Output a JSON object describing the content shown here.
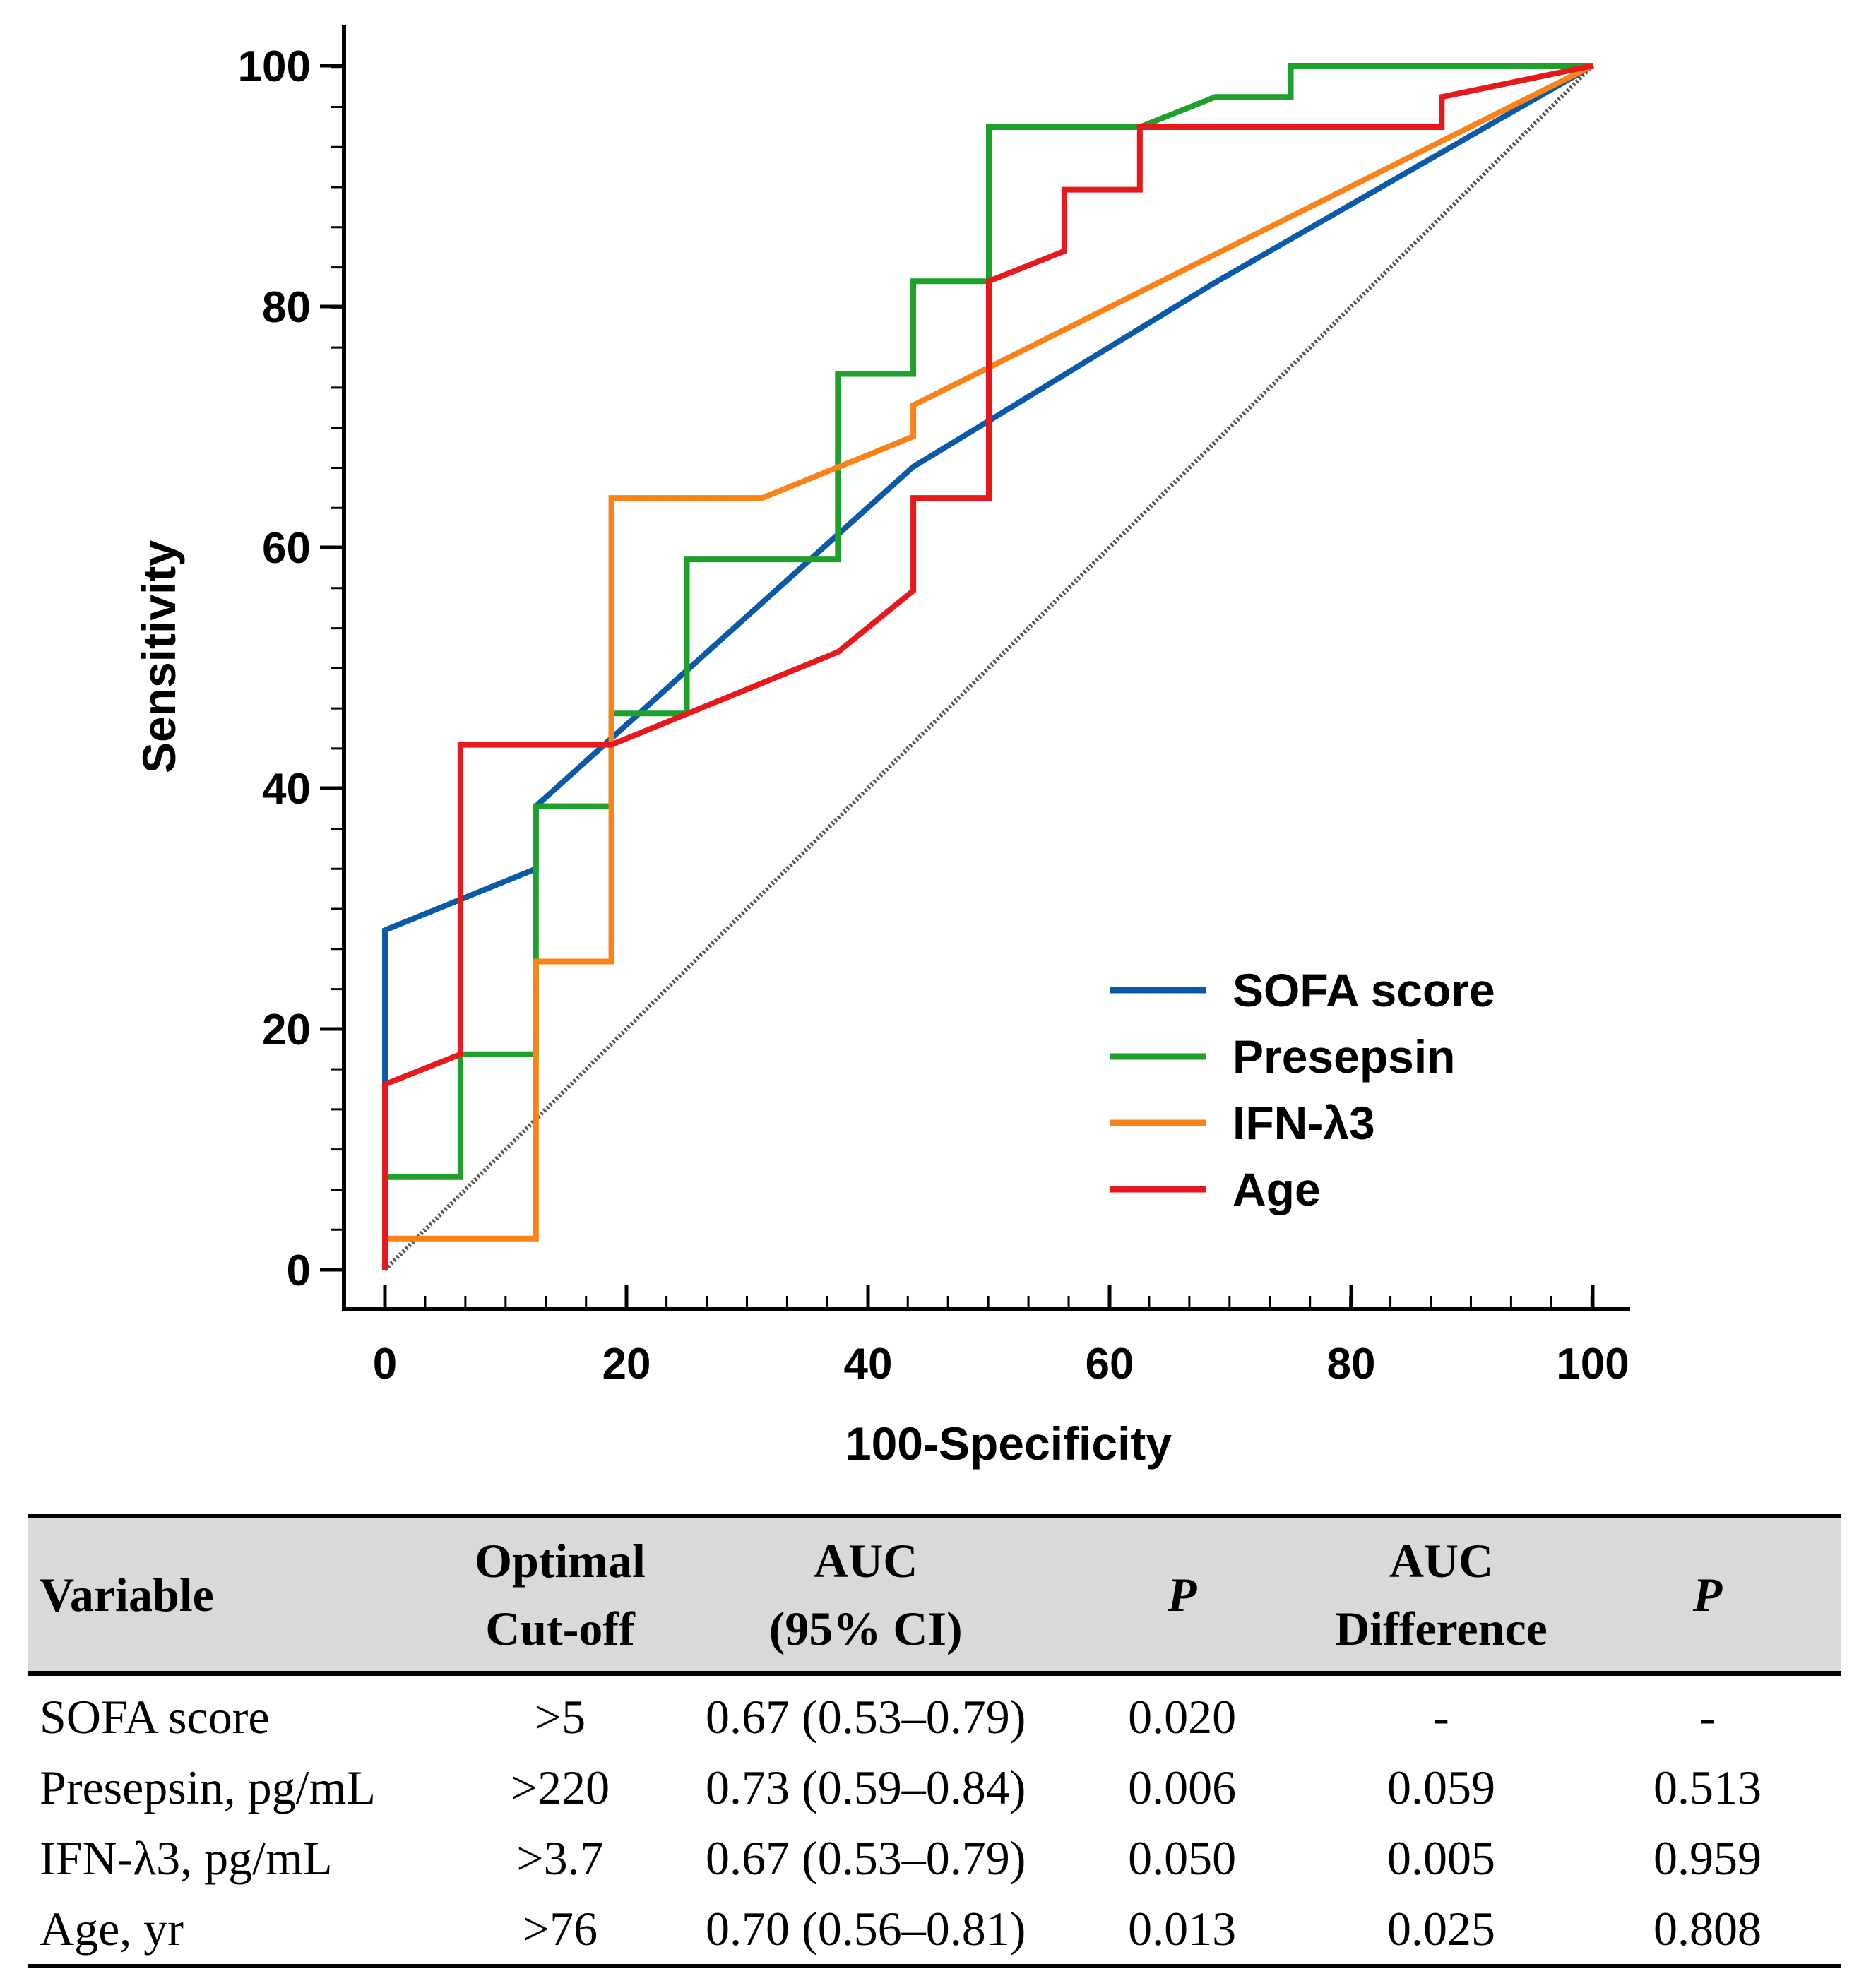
{
  "chart_data": {
    "type": "line",
    "title": "",
    "xlabel": "100-Specificity",
    "ylabel": "Sensitivity",
    "xlim": [
      0,
      100
    ],
    "ylim": [
      0,
      100
    ],
    "xticks": [
      0,
      20,
      40,
      60,
      80,
      100
    ],
    "yticks": [
      0,
      20,
      40,
      60,
      80,
      100
    ],
    "minor_tick_step": 3.33,
    "legend_position": "lower-right",
    "reference_line": {
      "name": "chance diagonal",
      "points": [
        [
          0,
          0
        ],
        [
          100,
          100
        ]
      ],
      "color": "#555555",
      "style": "dotted"
    },
    "series": [
      {
        "name": "SOFA score",
        "color": "#0b5aa8",
        "points": [
          [
            0,
            0
          ],
          [
            0,
            28.2
          ],
          [
            12.5,
            33.3
          ],
          [
            12.5,
            38.5
          ],
          [
            43.75,
            66.7
          ],
          [
            50,
            70.5
          ],
          [
            68.75,
            82.0
          ],
          [
            100,
            100
          ]
        ]
      },
      {
        "name": "Presepsin",
        "color": "#1fa02c",
        "points": [
          [
            0,
            0
          ],
          [
            0,
            7.7
          ],
          [
            6.25,
            7.7
          ],
          [
            6.25,
            17.9
          ],
          [
            12.5,
            17.9
          ],
          [
            12.5,
            38.5
          ],
          [
            18.75,
            38.5
          ],
          [
            18.75,
            46.2
          ],
          [
            25,
            46.2
          ],
          [
            25,
            59.0
          ],
          [
            37.5,
            59.0
          ],
          [
            37.5,
            74.4
          ],
          [
            43.75,
            74.4
          ],
          [
            43.75,
            82.1
          ],
          [
            50,
            82.1
          ],
          [
            50,
            94.9
          ],
          [
            62.5,
            94.9
          ],
          [
            68.75,
            97.4
          ],
          [
            75,
            97.4
          ],
          [
            75,
            100
          ],
          [
            100,
            100
          ]
        ]
      },
      {
        "name": "IFN-λ3",
        "color": "#f98318",
        "points": [
          [
            0,
            0
          ],
          [
            0,
            2.6
          ],
          [
            12.5,
            2.6
          ],
          [
            12.5,
            25.6
          ],
          [
            18.75,
            25.6
          ],
          [
            18.75,
            64.1
          ],
          [
            31.25,
            64.1
          ],
          [
            43.75,
            69.2
          ],
          [
            43.75,
            71.8
          ],
          [
            100,
            100
          ]
        ]
      },
      {
        "name": "Age",
        "color": "#e8191d",
        "points": [
          [
            0,
            0
          ],
          [
            0,
            15.4
          ],
          [
            6.25,
            17.9
          ],
          [
            6.25,
            43.6
          ],
          [
            18.75,
            43.6
          ],
          [
            37.5,
            51.3
          ],
          [
            43.75,
            56.4
          ],
          [
            43.75,
            64.1
          ],
          [
            50,
            64.1
          ],
          [
            50,
            82.1
          ],
          [
            56.25,
            84.6
          ],
          [
            56.25,
            89.7
          ],
          [
            62.5,
            89.7
          ],
          [
            62.5,
            94.9
          ],
          [
            87.5,
            94.9
          ],
          [
            87.5,
            97.4
          ],
          [
            100,
            100
          ]
        ]
      }
    ]
  },
  "table": {
    "headers": [
      {
        "lines": [
          "Variable"
        ],
        "italic": false
      },
      {
        "lines": [
          "Optimal",
          "Cut-off"
        ],
        "italic": false
      },
      {
        "lines": [
          "AUC",
          "(95% CI)"
        ],
        "italic": false
      },
      {
        "lines": [
          "P"
        ],
        "italic": true
      },
      {
        "lines": [
          "AUC",
          "Difference"
        ],
        "italic": false
      },
      {
        "lines": [
          "P"
        ],
        "italic": true
      }
    ],
    "rows": [
      [
        "SOFA score",
        ">5",
        "0.67 (0.53–0.79)",
        "0.020",
        "-",
        "-"
      ],
      [
        "Presepsin, pg/mL",
        ">220",
        "0.73 (0.59–0.84)",
        "0.006",
        "0.059",
        "0.513"
      ],
      [
        "IFN-λ3, pg/mL",
        ">3.7",
        "0.67 (0.53–0.79)",
        "0.050",
        "0.005",
        "0.959"
      ],
      [
        "Age, yr",
        ">76",
        "0.70 (0.56–0.81)",
        "0.013",
        "0.025",
        "0.808"
      ]
    ]
  }
}
